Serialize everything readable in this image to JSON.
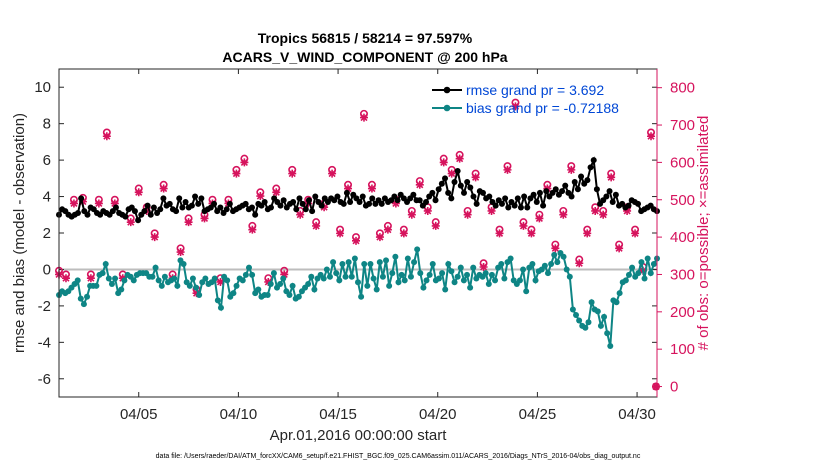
{
  "chart_data": {
    "type": "line",
    "title": "Tropics 56815 / 58214 = 97.597%",
    "subtitle": "ACARS_V_WIND_COMPONENT @ 200 hPa",
    "xlabel": "Apr.01,2016 00:00:00 start",
    "ylabel": "rmse and bias (model - observation)",
    "y2label": "# of obs: o=possible; ×=assimilated",
    "xlim": [
      1,
      31
    ],
    "ylim": [
      -7,
      11
    ],
    "y2lim": [
      -28,
      850
    ],
    "xticks": [
      5,
      10,
      15,
      20,
      25,
      30
    ],
    "xtick_labels": [
      "04/05",
      "04/10",
      "04/15",
      "04/20",
      "04/25",
      "04/30"
    ],
    "yticks": [
      -6,
      -4,
      -2,
      0,
      2,
      4,
      6,
      8,
      10
    ],
    "y2ticks": [
      0,
      100,
      200,
      300,
      400,
      500,
      600,
      700,
      800
    ],
    "legend_location": "top-right",
    "colors": {
      "rmse": "#000000",
      "bias": "#0e8585",
      "obs": "#d6135d",
      "zero_line": "#bdbdbd",
      "legend_text": "#0047d6",
      "right_axis": "#d6135d"
    },
    "series": [
      {
        "name": "rmse",
        "legend": "rmse grand pr = 3.692",
        "marker": "filled-circle",
        "values": [
          3.0,
          3.3,
          3.2,
          3.0,
          2.9,
          3.0,
          3.1,
          3.9,
          3.2,
          3.0,
          3.4,
          3.3,
          3.1,
          3.0,
          3.2,
          3.1,
          3.0,
          3.2,
          3.4,
          3.1,
          3.0,
          2.9,
          3.3,
          3.4,
          3.2,
          2.7,
          3.0,
          3.2,
          3.5,
          3.0,
          3.4,
          3.1,
          3.3,
          3.9,
          3.5,
          3.6,
          3.3,
          3.2,
          3.9,
          3.4,
          3.7,
          3.4,
          3.5,
          4.0,
          3.6,
          3.9,
          3.2,
          3.3,
          3.4,
          3.6,
          3.2,
          3.4,
          3.1,
          3.3,
          3.6,
          3.2,
          3.3,
          3.4,
          3.5,
          3.6,
          3.3,
          3.4,
          3.0,
          3.6,
          3.5,
          3.7,
          3.3,
          3.4,
          3.9,
          3.7,
          3.5,
          3.8,
          3.4,
          3.6,
          3.7,
          3.3,
          3.9,
          3.6,
          3.3,
          3.8,
          3.2,
          4.0,
          3.7,
          3.5,
          3.9,
          3.7,
          3.9,
          3.8,
          4.0,
          3.7,
          3.6,
          4.2,
          3.7,
          4.1,
          3.9,
          3.7,
          4.0,
          3.5,
          3.6,
          3.9,
          3.6,
          3.8,
          3.6,
          3.9,
          3.7,
          3.8,
          4.0,
          3.8,
          4.1,
          3.9,
          3.7,
          3.9,
          4.1,
          3.8,
          3.8,
          3.5,
          3.7,
          4.0,
          4.2,
          3.8,
          4.4,
          4.7,
          5.0,
          4.2,
          3.9,
          4.8,
          5.4,
          4.6,
          4.2,
          4.8,
          4.5,
          4.0,
          3.6,
          4.3,
          4.2,
          3.9,
          4.0,
          3.7,
          3.5,
          3.8,
          3.6,
          3.9,
          3.4,
          3.7,
          3.5,
          3.9,
          3.4,
          4.0,
          3.4,
          3.9,
          4.1,
          3.7,
          4.2,
          3.5,
          4.3,
          4.0,
          4.2,
          4.4,
          4.1,
          4.3,
          4.6,
          4.2,
          4.0,
          4.8,
          4.4,
          5.1,
          4.7,
          4.9,
          5.6,
          6.0,
          4.4,
          3.6,
          3.8,
          4.0,
          4.3,
          3.7,
          4.1,
          3.5,
          3.6,
          3.4,
          3.5,
          3.8,
          3.7,
          3.6,
          3.2,
          3.3,
          3.4,
          3.5,
          3.3,
          3.2
        ]
      },
      {
        "name": "bias",
        "legend": "bias grand pr = -0.72188",
        "marker": "filled-circle",
        "values": [
          -1.4,
          -1.2,
          -1.3,
          -1.2,
          -1.0,
          -0.8,
          -0.6,
          -1.6,
          -1.9,
          -1.5,
          -0.9,
          -0.9,
          -0.9,
          -0.3,
          -0.2,
          0.3,
          -0.5,
          -0.8,
          -0.5,
          -1.3,
          -1.1,
          -0.6,
          -0.3,
          -0.4,
          -0.6,
          -0.3,
          -0.2,
          -0.2,
          -0.2,
          -0.4,
          -0.4,
          0.1,
          -0.6,
          -0.9,
          -0.4,
          -0.7,
          -0.6,
          -0.5,
          -0.9,
          0.5,
          0.3,
          -0.7,
          -0.9,
          -0.5,
          -1.0,
          -1.4,
          -0.7,
          -0.5,
          -0.8,
          -0.7,
          -0.5,
          -1.7,
          -2.1,
          -0.4,
          -0.6,
          -1.5,
          -1.3,
          -0.9,
          -0.5,
          -0.6,
          -0.3,
          0.1,
          -0.3,
          -1.3,
          -1.1,
          -1.5,
          -1.4,
          -1.4,
          -0.8,
          -0.2,
          -1.0,
          -0.8,
          -0.5,
          -1.2,
          -1.4,
          -0.9,
          -1.6,
          -1.5,
          -1.2,
          -1.0,
          -0.8,
          -0.4,
          -1.1,
          -0.5,
          -0.3,
          -0.5,
          0.0,
          -0.4,
          0.4,
          -0.2,
          -0.6,
          0.3,
          -0.4,
          0.4,
          -0.4,
          0.6,
          -0.7,
          -1.5,
          0.3,
          -0.9,
          0.3,
          -0.5,
          -1.1,
          0.4,
          -0.4,
          0.5,
          -0.9,
          -0.2,
          0.7,
          -0.7,
          -0.3,
          -0.6,
          0.6,
          -0.4,
          0.4,
          1.1,
          -0.2,
          -1.0,
          -0.6,
          -0.3,
          0.3,
          -0.6,
          -0.5,
          -0.2,
          -1.1,
          0.3,
          -0.1,
          -0.7,
          -0.4,
          0.1,
          -0.6,
          -0.3,
          -1.0,
          0.1,
          -0.5,
          -0.3,
          -0.4,
          -0.2,
          -0.8,
          -0.3,
          -0.6,
          0.1,
          0.3,
          -0.5,
          0.4,
          0.6,
          -0.6,
          -0.8,
          -0.6,
          0.0,
          -1.2,
          0.1,
          0.3,
          -0.6,
          -0.1,
          0.0,
          0.2,
          -0.2,
          0.3,
          0.8,
          0.4,
          0.9,
          0.7,
          0.0,
          -0.4,
          -2.2,
          -2.5,
          -2.8,
          -3.1,
          -3.2,
          -2.9,
          -1.8,
          -2.2,
          -2.3,
          -3.1,
          -2.6,
          -3.5,
          -4.2,
          -1.7,
          -1.8,
          -1.3,
          -0.7,
          -0.6,
          -0.3,
          0.1,
          -0.4,
          -0.2,
          0.4,
          -0.5,
          0.6,
          -0.2,
          0.3,
          0.6
        ]
      },
      {
        "name": "obs_possible",
        "axis": "right",
        "marker": "open-circle",
        "x": [
          1.0,
          1.35,
          1.75,
          2.2,
          2.6,
          3.0,
          3.4,
          3.8,
          4.2,
          4.6,
          5.0,
          5.4,
          5.8,
          6.25,
          6.7,
          7.1,
          7.5,
          7.9,
          8.3,
          8.7,
          9.1,
          9.5,
          9.9,
          10.3,
          10.7,
          11.1,
          11.5,
          11.9,
          12.3,
          12.7,
          13.1,
          13.5,
          13.9,
          14.3,
          14.7,
          15.1,
          15.5,
          15.9,
          16.3,
          16.7,
          17.1,
          17.5,
          17.9,
          18.3,
          18.7,
          19.1,
          19.5,
          19.9,
          20.3,
          20.7,
          21.1,
          21.5,
          21.9,
          22.3,
          22.7,
          23.1,
          23.5,
          23.9,
          24.3,
          24.7,
          25.1,
          25.5,
          25.9,
          26.3,
          26.7,
          27.1,
          27.5,
          27.9,
          28.3,
          28.7,
          29.1,
          29.5,
          29.9,
          30.3,
          30.7,
          30.95
        ],
        "values": [
          310,
          300,
          500,
          505,
          300,
          500,
          680,
          500,
          300,
          450,
          530,
          480,
          410,
          540,
          300,
          370,
          450,
          260,
          460,
          500,
          290,
          500,
          580,
          610,
          430,
          520,
          290,
          530,
          310,
          580,
          470,
          500,
          440,
          490,
          580,
          420,
          540,
          400,
          730,
          540,
          410,
          430,
          500,
          420,
          470,
          550,
          480,
          440,
          610,
          580,
          620,
          470,
          570,
          330,
          480,
          420,
          590,
          760,
          440,
          420,
          460,
          540,
          380,
          470,
          590,
          340,
          420,
          480,
          470,
          570,
          380,
          480,
          420,
          320,
          680,
          0
        ]
      },
      {
        "name": "obs_assimilated",
        "axis": "right",
        "marker": "asterisk",
        "x": [
          1.0,
          1.35,
          1.75,
          2.2,
          2.6,
          3.0,
          3.4,
          3.8,
          4.2,
          4.6,
          5.0,
          5.4,
          5.8,
          6.25,
          6.7,
          7.1,
          7.5,
          7.9,
          8.3,
          8.7,
          9.1,
          9.5,
          9.9,
          10.3,
          10.7,
          11.1,
          11.5,
          11.9,
          12.3,
          12.7,
          13.1,
          13.5,
          13.9,
          14.3,
          14.7,
          15.1,
          15.5,
          15.9,
          16.3,
          16.7,
          17.1,
          17.5,
          17.9,
          18.3,
          18.7,
          19.1,
          19.5,
          19.9,
          20.3,
          20.7,
          21.1,
          21.5,
          21.9,
          22.3,
          22.7,
          23.1,
          23.5,
          23.9,
          24.3,
          24.7,
          25.1,
          25.5,
          25.9,
          26.3,
          26.7,
          27.1,
          27.5,
          27.9,
          28.3,
          28.7,
          29.1,
          29.5,
          29.9,
          30.3,
          30.7,
          30.95
        ],
        "values": [
          300,
          290,
          490,
          495,
          290,
          490,
          670,
          490,
          290,
          440,
          520,
          470,
          400,
          530,
          290,
          360,
          440,
          250,
          450,
          490,
          280,
          490,
          570,
          600,
          420,
          510,
          280,
          520,
          300,
          570,
          460,
          490,
          430,
          480,
          570,
          410,
          530,
          390,
          720,
          530,
          400,
          420,
          490,
          410,
          460,
          540,
          470,
          430,
          600,
          570,
          610,
          460,
          560,
          320,
          470,
          410,
          580,
          750,
          430,
          410,
          450,
          530,
          370,
          460,
          580,
          330,
          410,
          470,
          460,
          560,
          370,
          470,
          410,
          310,
          670,
          0
        ]
      }
    ]
  },
  "footnote": "data file: /Users/raeder/DAI/ATM_forcXX/CAM6_setup/f.e21.FHIST_BGC.f09_025.CAM6assim.011/ACARS_2016/Diags_NTrS_2016-04/obs_diag_output.nc"
}
